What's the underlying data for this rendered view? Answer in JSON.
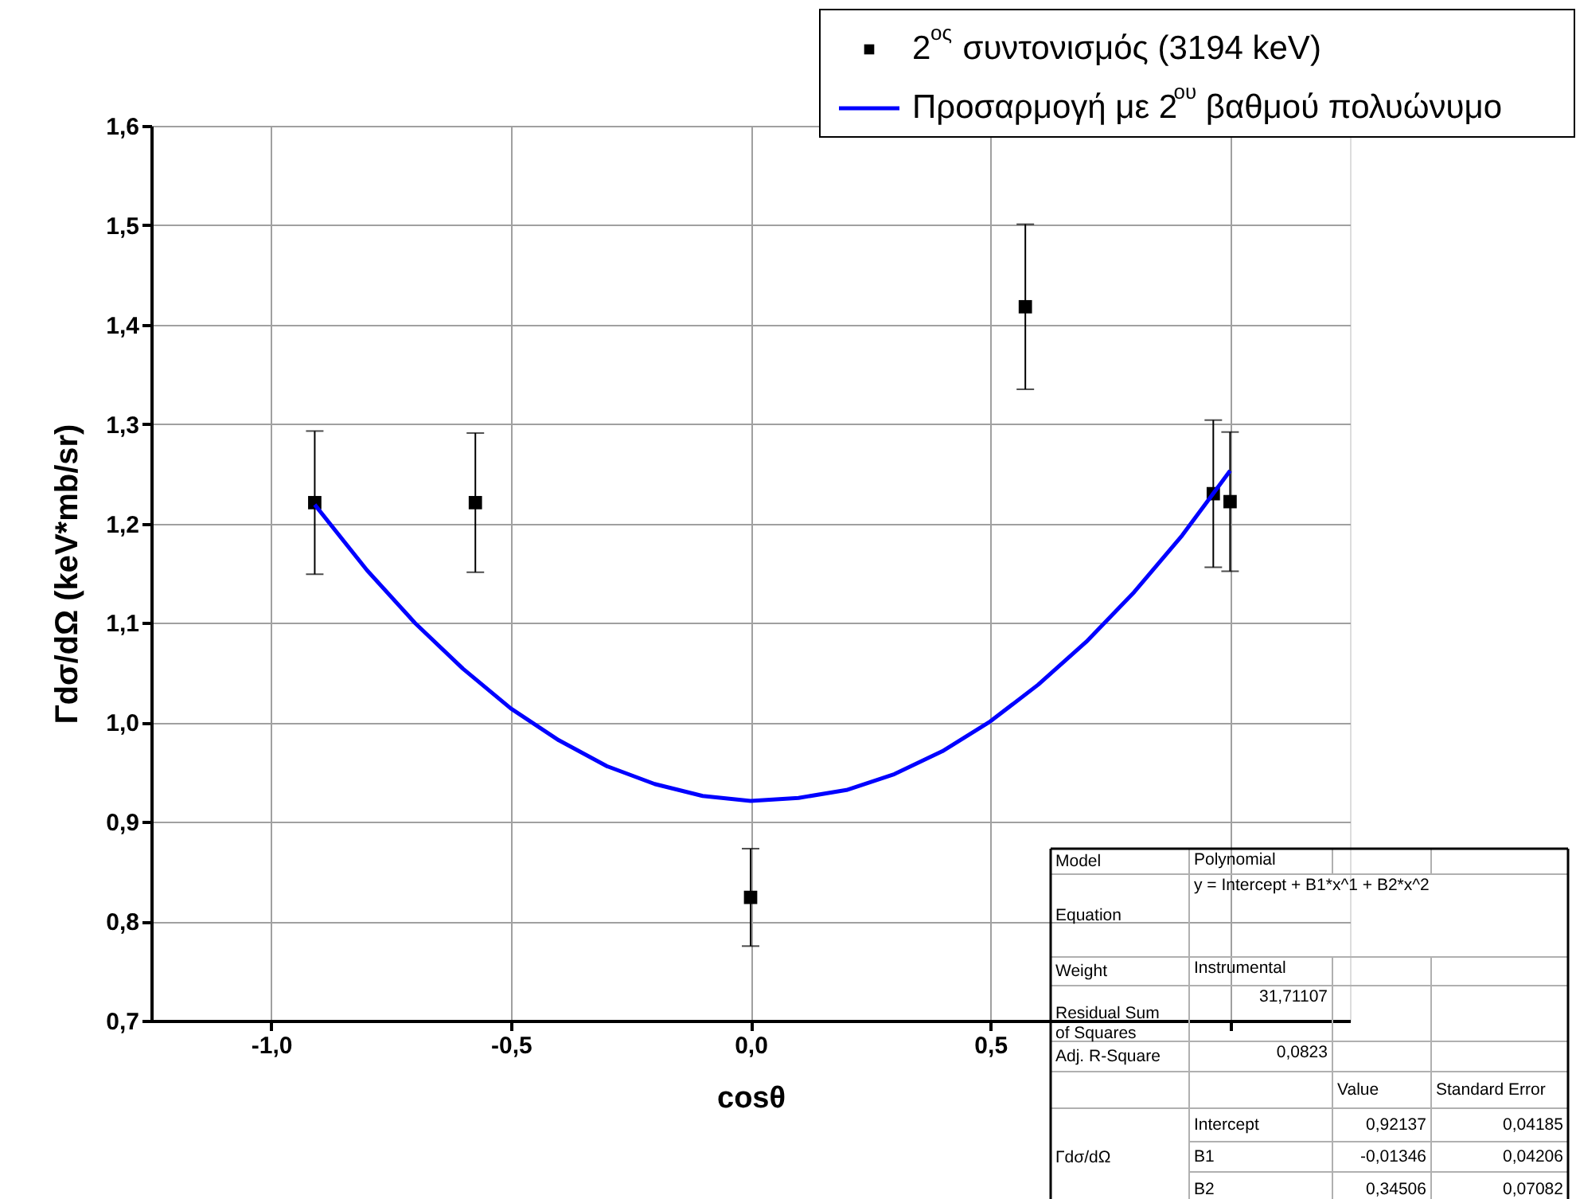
{
  "chart_data": {
    "type": "scatter",
    "xlabel": "cosθ",
    "ylabel": "Γdσ/dΩ (keV*mb/sr)",
    "xlim": [
      -1.25,
      1.25
    ],
    "xticks": [
      {
        "value": -1.0,
        "label": "-1,0"
      },
      {
        "value": -0.5,
        "label": "-0,5"
      },
      {
        "value": 0.0,
        "label": "0,0"
      },
      {
        "value": 0.5,
        "label": "0,5"
      },
      {
        "value": 1.0,
        "label": null
      }
    ],
    "ylim": [
      0.7,
      1.6
    ],
    "yticks": [
      {
        "value": 0.7,
        "label": "0,7"
      },
      {
        "value": 0.8,
        "label": "0,8"
      },
      {
        "value": 0.9,
        "label": "0,9"
      },
      {
        "value": 1.0,
        "label": "1,0"
      },
      {
        "value": 1.1,
        "label": "1,1"
      },
      {
        "value": 1.2,
        "label": "1,2"
      },
      {
        "value": 1.3,
        "label": "1,3"
      },
      {
        "value": 1.4,
        "label": "1,4"
      },
      {
        "value": 1.5,
        "label": "1,5"
      },
      {
        "value": 1.6,
        "label": "1,6"
      }
    ],
    "grid": true,
    "legend": "top right",
    "series": [
      {
        "name": "2$^{ος}$ συντονισμός (3194 keV)",
        "marker": "square",
        "color": "#000000",
        "x": [
          -0.909,
          -0.574,
          0.0,
          0.573,
          0.965,
          1.0
        ],
        "values": [
          1.221,
          1.221,
          0.824,
          1.418,
          1.23,
          1.222
        ],
        "errors": [
          0.072,
          0.07,
          0.049,
          0.083,
          0.074,
          0.07
        ]
      },
      {
        "name": "Προσαρμογή με 2$^{ου}$ βαθμού πολυώνυμο",
        "type": "line",
        "marker": "none",
        "line_style": "solid",
        "color": "#0000ff",
        "x": [
          -0.909,
          -0.8,
          -0.7,
          -0.6,
          -0.5,
          -0.4,
          -0.3,
          -0.2,
          -0.1,
          0.0,
          0.1,
          0.2,
          0.3,
          0.4,
          0.5,
          0.6,
          0.7,
          0.8,
          0.9,
          1.0
        ],
        "values": [
          1.219,
          1.153,
          1.1,
          1.054,
          1.014,
          0.982,
          0.956,
          0.938,
          0.926,
          0.921,
          0.924,
          0.932,
          0.948,
          0.971,
          1.001,
          1.038,
          1.081,
          1.131,
          1.188,
          1.253
        ]
      }
    ],
    "annotations": [
      "Model",
      "Polynomial",
      "Equation",
      "y = Intercept + B1*x^1 + B2*x^2",
      "Weight",
      "Instrumental",
      "Residual Sum of Squares",
      "31,71107",
      "Adj. R-Square",
      "0,0823",
      "Value",
      "Standard Error",
      "Γdσ/dΩ",
      "Intercept",
      "0,92137",
      "0,04185",
      "B1",
      "-0,01346",
      "0,04206",
      "B2",
      "0,34506",
      "0,07082"
    ]
  }
}
